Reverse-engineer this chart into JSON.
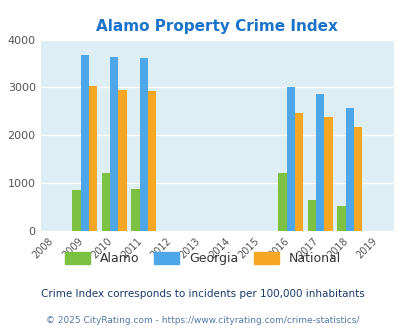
{
  "title": "Alamo Property Crime Index",
  "all_years": [
    2008,
    2009,
    2010,
    2011,
    2012,
    2013,
    2014,
    2015,
    2016,
    2017,
    2018,
    2019
  ],
  "data_years": [
    2009,
    2010,
    2011,
    2016,
    2017,
    2018
  ],
  "alamo": [
    850,
    1220,
    870,
    1220,
    640,
    530
  ],
  "georgia": [
    3670,
    3640,
    3620,
    3010,
    2860,
    2580
  ],
  "national": [
    3040,
    2950,
    2920,
    2460,
    2380,
    2170
  ],
  "alamo_color": "#7dc142",
  "georgia_color": "#4da6e8",
  "national_color": "#f5a623",
  "bg_color": "#ddeef5",
  "grid_color": "#ffffff",
  "title_color": "#1a73c9",
  "subtitle": "Crime Index corresponds to incidents per 100,000 inhabitants",
  "footer": "© 2025 CityRating.com - https://www.cityrating.com/crime-statistics/",
  "ylim": [
    0,
    4000
  ],
  "yticks": [
    0,
    1000,
    2000,
    3000,
    4000
  ],
  "bar_width": 0.28
}
